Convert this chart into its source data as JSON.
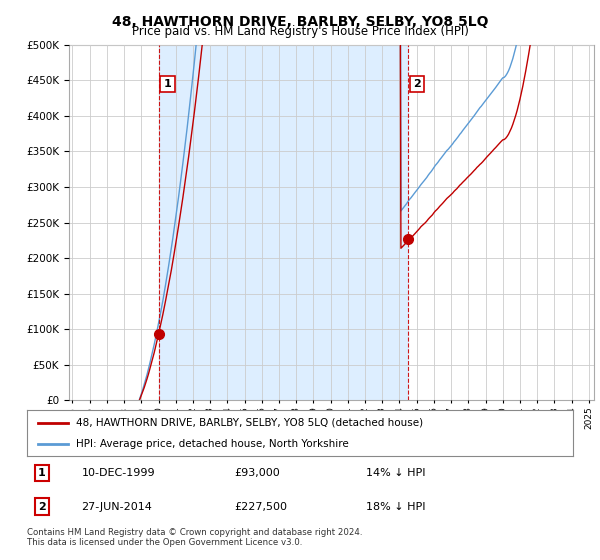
{
  "title": "48, HAWTHORN DRIVE, BARLBY, SELBY, YO8 5LQ",
  "subtitle": "Price paid vs. HM Land Registry's House Price Index (HPI)",
  "legend_line1": "48, HAWTHORN DRIVE, BARLBY, SELBY, YO8 5LQ (detached house)",
  "legend_line2": "HPI: Average price, detached house, North Yorkshire",
  "transaction1_date": "10-DEC-1999",
  "transaction1_price": "£93,000",
  "transaction1_pct": "14% ↓ HPI",
  "transaction2_date": "27-JUN-2014",
  "transaction2_price": "£227,500",
  "transaction2_pct": "18% ↓ HPI",
  "footer": "Contains HM Land Registry data © Crown copyright and database right 2024.\nThis data is licensed under the Open Government Licence v3.0.",
  "hpi_color": "#5b9bd5",
  "price_color": "#c00000",
  "vline_color": "#cc0000",
  "shade_color": "#ddeeff",
  "grid_color": "#cccccc",
  "background_color": "#ffffff",
  "ylim": [
    0,
    500000
  ],
  "yticks": [
    0,
    50000,
    100000,
    150000,
    200000,
    250000,
    300000,
    350000,
    400000,
    450000,
    500000
  ],
  "transaction1_year": 2000.0,
  "transaction1_value": 93000,
  "transaction2_year": 2014.5,
  "transaction2_value": 227500,
  "xmin": 1994.8,
  "xmax": 2025.3
}
